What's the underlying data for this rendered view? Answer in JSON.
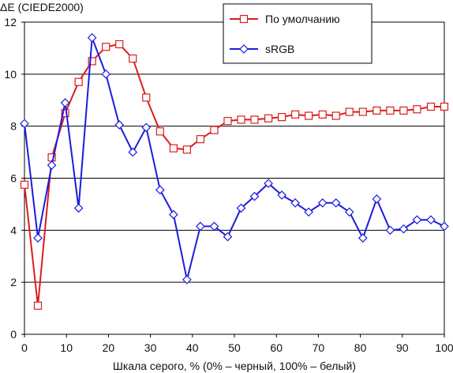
{
  "chart_data": {
    "type": "line",
    "title": "",
    "ylabel": "ΔE (CIEDE2000)",
    "xlabel": "Шкала серого, % (0% – черный, 100% – белый)",
    "xlim": [
      0,
      100
    ],
    "ylim": [
      0,
      12
    ],
    "x_ticks": [
      0,
      10,
      20,
      30,
      40,
      50,
      60,
      70,
      80,
      90,
      100
    ],
    "y_ticks": [
      0,
      2,
      4,
      6,
      8,
      10,
      12
    ],
    "grid": "horizontal",
    "legend_position": "top-right",
    "x": [
      0,
      3.2,
      6.5,
      9.7,
      12.9,
      16.1,
      19.4,
      22.6,
      25.8,
      29.0,
      32.3,
      35.5,
      38.7,
      41.9,
      45.2,
      48.4,
      51.6,
      54.8,
      58.1,
      61.3,
      64.5,
      67.7,
      71.0,
      74.2,
      77.4,
      80.6,
      83.9,
      87.1,
      90.3,
      93.5,
      96.8,
      100
    ],
    "series": [
      {
        "name": "По умолчанию",
        "color": "#dd1c1c",
        "marker": "square",
        "values": [
          5.75,
          1.1,
          6.8,
          8.5,
          9.7,
          10.5,
          11.05,
          11.15,
          10.6,
          9.1,
          7.8,
          7.15,
          7.1,
          7.5,
          7.85,
          8.2,
          8.25,
          8.25,
          8.3,
          8.35,
          8.45,
          8.4,
          8.45,
          8.4,
          8.55,
          8.55,
          8.6,
          8.6,
          8.6,
          8.65,
          8.75,
          8.75
        ]
      },
      {
        "name": "sRGB",
        "color": "#1c1cdd",
        "marker": "diamond",
        "values": [
          8.1,
          3.7,
          6.5,
          8.9,
          4.85,
          11.4,
          10.0,
          8.05,
          7.0,
          7.95,
          5.55,
          4.6,
          2.1,
          4.15,
          4.15,
          3.75,
          4.85,
          5.3,
          5.8,
          5.35,
          5.05,
          4.7,
          5.05,
          5.05,
          4.7,
          3.7,
          5.2,
          4.0,
          4.05,
          4.4,
          4.4,
          4.15
        ]
      }
    ]
  }
}
